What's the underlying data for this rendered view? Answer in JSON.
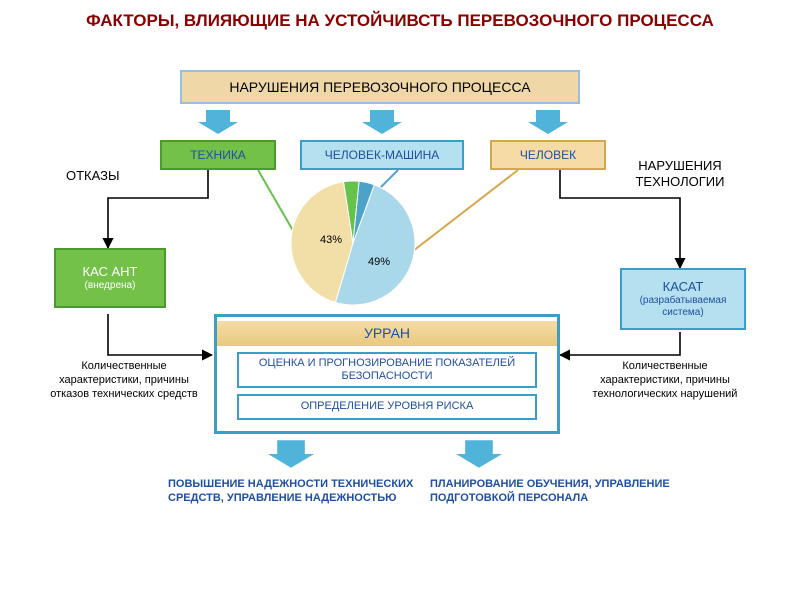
{
  "title": "ФАКТОРЫ, ВЛИЯЮЩИЕ НА УСТОЙЧИВСТЬ ПЕРЕВОЗОЧНОГО ПРОЦЕССА",
  "title_color": "#8b0000",
  "colors": {
    "tan_fill": "#efd7a8",
    "tan_border": "#99bfe0",
    "green_fill": "#74c14a",
    "green_border": "#4a9a2d",
    "skyblue_fill": "#b4e0ef",
    "skyblue_border": "#3a9fc8",
    "tan2_fill": "#f6dba6",
    "tan2_border": "#d0a94f",
    "arrow_fill": "#4fb3da",
    "white": "#ffffff",
    "text_dark": "#2a2a2a",
    "blue_text": "#1f4fa1",
    "black": "#000000"
  },
  "boxes": {
    "violations": "НАРУШЕНИЯ ПЕРЕВОЗОЧНОГО ПРОЦЕССА",
    "technique": "ТЕХНИКА",
    "human_machine": "ЧЕЛОВЕК-МАШИНА",
    "human": "ЧЕЛОВЕК",
    "kas_ant": "КАС АНТ",
    "kas_ant_sub": "(внедрена)",
    "kasat": "КАСАТ",
    "kasat_sub": "(разрабатываемая система)",
    "urran": "УРРАН",
    "eval": "ОЦЕНКА И ПРОГНОЗИРОВАНИЕ ПОКАЗАТЕЛЕЙ БЕЗОПАСНОСТИ",
    "risk": "ОПРЕДЕЛЕНИЕ УРОВНЯ РИСКА"
  },
  "labels": {
    "failures": "ОТКАЗЫ",
    "tech_violations": "НАРУШЕНИЯ ТЕХНОЛОГИИ",
    "left_desc": "Количественные характеристики, причины отказов технических средств",
    "right_desc": "Количественные характеристики, причины технологических нарушений",
    "bottom_left": "ПОВЫШЕНИЕ НАДЕЖНОСТИ ТЕХНИЧЕСКИХ СРЕДСТВ, УПРАВЛЕНИЕ НАДЕЖНОСТЬЮ",
    "bottom_right": "ПЛАНИРОВАНИЕ ОБУЧЕНИЯ, УПРАВЛЕНИЕ ПОДГОТОВКОЙ ПЕРСОНАЛА"
  },
  "pie": {
    "slices": [
      {
        "label": "49%",
        "value": 49,
        "color": "#a9d8ea"
      },
      {
        "label": "43%",
        "value": 43,
        "color": "#f2dfa8"
      },
      {
        "label": "",
        "value": 4,
        "color": "#66c24a"
      },
      {
        "label": "",
        "value": 4,
        "color": "#4da3c7"
      }
    ],
    "radius": 62
  }
}
